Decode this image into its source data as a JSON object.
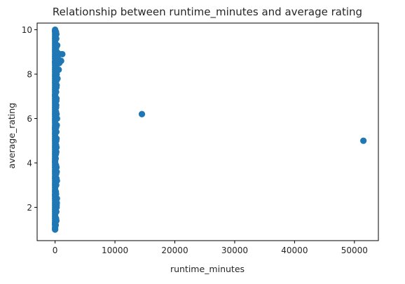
{
  "chart_data": {
    "type": "scatter",
    "title": "Relationship between runtime_minutes and average rating",
    "xlabel": "runtime_minutes",
    "ylabel": "average_rating",
    "xlim": [
      -3000,
      54000
    ],
    "ylim": [
      0.5,
      10.3
    ],
    "xticks": [
      0,
      10000,
      20000,
      30000,
      40000,
      50000
    ],
    "yticks": [
      2,
      4,
      6,
      8,
      10
    ],
    "grid": false,
    "marker_color": "#1f77b4",
    "series": [
      {
        "x": [
          0,
          0,
          0,
          0,
          0,
          0,
          0,
          0,
          0,
          0,
          0,
          0,
          0,
          0,
          0,
          0,
          0,
          0,
          0,
          0,
          0,
          0,
          0,
          0,
          0,
          0,
          0,
          0,
          0,
          0,
          0,
          0,
          0,
          0,
          0,
          0,
          0,
          0,
          0,
          0,
          0,
          0,
          0,
          0,
          0,
          0,
          0,
          0,
          0,
          0,
          0,
          0,
          0,
          0,
          0,
          0,
          0,
          0,
          0,
          0,
          0,
          0,
          0,
          0,
          0,
          0,
          0,
          0,
          0,
          0,
          0,
          0,
          0,
          0,
          0,
          0,
          0,
          0,
          0,
          0,
          0,
          0,
          0,
          0,
          0,
          0,
          0,
          0,
          0,
          0,
          0,
          0,
          0,
          0,
          0,
          0,
          0,
          0,
          0,
          100,
          150,
          200,
          250,
          300,
          120,
          180,
          220,
          260,
          140,
          90,
          200,
          160,
          240,
          210,
          280,
          320,
          150,
          190,
          230,
          170,
          260,
          130,
          200,
          180,
          220,
          160,
          270,
          190,
          140,
          210,
          250,
          160,
          300,
          230,
          130,
          190,
          170,
          240,
          200,
          220,
          260,
          150,
          190,
          210,
          280,
          170,
          230,
          160,
          200,
          400,
          500,
          350,
          600,
          800,
          1000,
          1200,
          450,
          300,
          700,
          14500,
          51500
        ],
        "y": [
          1.0,
          1.1,
          1.2,
          1.3,
          1.4,
          1.5,
          1.6,
          1.7,
          1.8,
          1.9,
          2.0,
          2.1,
          2.2,
          2.3,
          2.4,
          2.5,
          2.6,
          2.7,
          2.8,
          2.9,
          3.0,
          3.1,
          3.2,
          3.3,
          3.4,
          3.5,
          3.6,
          3.7,
          3.8,
          3.9,
          4.0,
          4.1,
          4.2,
          4.3,
          4.4,
          4.5,
          4.6,
          4.7,
          4.8,
          4.9,
          5.0,
          5.1,
          5.2,
          5.3,
          5.4,
          5.5,
          5.6,
          5.7,
          5.8,
          5.9,
          6.0,
          6.1,
          6.2,
          6.3,
          6.4,
          6.5,
          6.6,
          6.7,
          6.8,
          6.9,
          7.0,
          7.1,
          7.2,
          7.3,
          7.4,
          7.5,
          7.6,
          7.7,
          7.8,
          7.9,
          8.0,
          8.1,
          8.2,
          8.3,
          8.4,
          8.5,
          8.6,
          8.7,
          8.8,
          8.9,
          9.0,
          9.1,
          9.2,
          9.3,
          9.4,
          9.5,
          9.6,
          9.7,
          9.8,
          9.9,
          10.0,
          1.05,
          2.55,
          4.05,
          5.55,
          7.05,
          8.55,
          9.95,
          1.25,
          1.2,
          1.5,
          1.8,
          2.1,
          2.4,
          2.7,
          3.0,
          3.3,
          3.6,
          3.9,
          4.2,
          4.5,
          4.8,
          5.1,
          5.4,
          5.7,
          6.0,
          6.3,
          6.6,
          6.9,
          7.2,
          7.5,
          7.8,
          8.1,
          8.4,
          8.7,
          9.0,
          9.3,
          9.6,
          9.9,
          1.4,
          2.0,
          2.6,
          3.2,
          3.8,
          4.4,
          5.0,
          5.6,
          6.2,
          6.8,
          7.4,
          8.0,
          8.6,
          9.2,
          9.8,
          2.2,
          3.5,
          4.7,
          6.5,
          7.7,
          7.8,
          8.6,
          9.3,
          8.2,
          8.9,
          8.6,
          8.9,
          8.7,
          9.0,
          8.5,
          6.2,
          5.0
        ]
      }
    ]
  }
}
